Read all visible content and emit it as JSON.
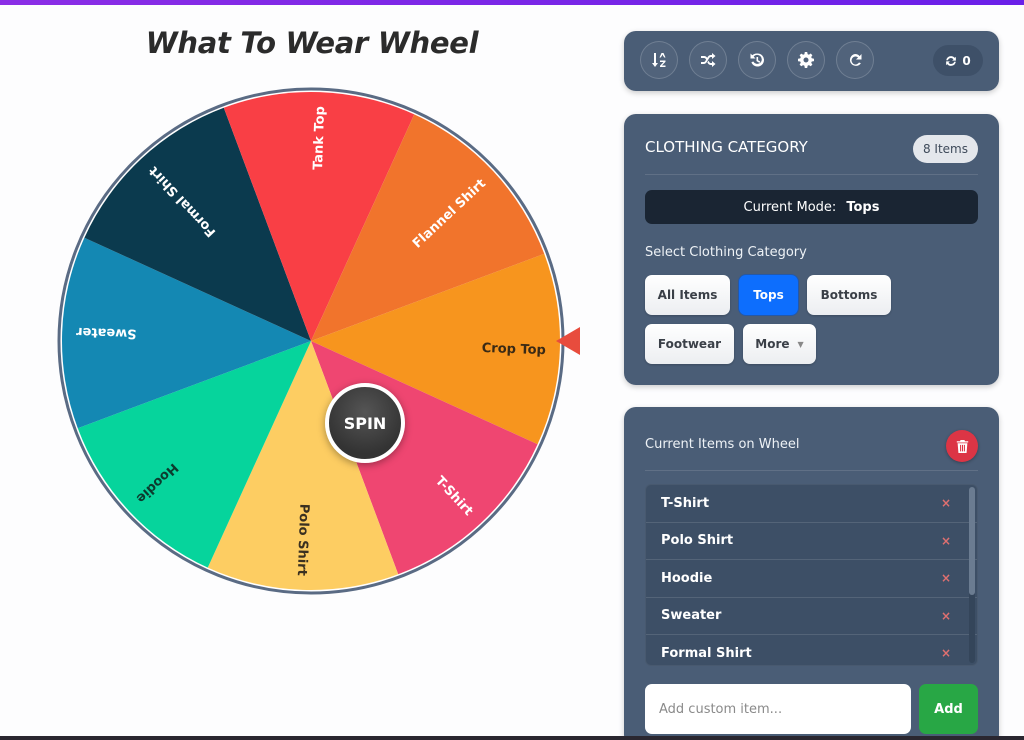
{
  "title": "What To Wear Wheel",
  "wheel": {
    "spin_label": "SPIN",
    "border_color": "#5a6b84",
    "pointer_color": "#e84c3d",
    "selected": "Crop Top",
    "segments": [
      {
        "label": "Crop Top",
        "color": "#f7951e",
        "text_color": "#3a2a15"
      },
      {
        "label": "T-Shirt",
        "color": "#ef4671",
        "text_color": "#ffffff"
      },
      {
        "label": "Polo Shirt",
        "color": "#fdcd62",
        "text_color": "#3a3020"
      },
      {
        "label": "Hoodie",
        "color": "#06d49c",
        "text_color": "#0c3b2e"
      },
      {
        "label": "Sweater",
        "color": "#1488b3",
        "text_color": "#ffffff"
      },
      {
        "label": "Formal Shirt",
        "color": "#0b3a4e",
        "text_color": "#ffffff"
      },
      {
        "label": "Tank Top",
        "color": "#f93f45",
        "text_color": "#ffffff"
      },
      {
        "label": "Flannel Shirt",
        "color": "#f1742c",
        "text_color": "#ffffff"
      }
    ]
  },
  "toolbar": {
    "buttons": [
      {
        "name": "sort",
        "icon": "sort-alpha-icon"
      },
      {
        "name": "shuffle",
        "icon": "shuffle-icon"
      },
      {
        "name": "history",
        "icon": "history-icon"
      },
      {
        "name": "settings",
        "icon": "gear-icon"
      },
      {
        "name": "reset",
        "icon": "redo-icon"
      }
    ],
    "spin_count": "0"
  },
  "category_panel": {
    "title": "CLOTHING CATEGORY",
    "items_badge": "8 Items",
    "mode_label": "Current Mode:",
    "mode_value": "Tops",
    "select_label": "Select Clothing Category",
    "buttons": [
      {
        "label": "All Items",
        "active": false
      },
      {
        "label": "Tops",
        "active": true
      },
      {
        "label": "Bottoms",
        "active": false
      },
      {
        "label": "Footwear",
        "active": false
      },
      {
        "label": "More",
        "active": false,
        "dropdown": true
      }
    ]
  },
  "items_panel": {
    "title": "Current Items on Wheel",
    "items": [
      "T-Shirt",
      "Polo Shirt",
      "Hoodie",
      "Sweater",
      "Formal Shirt"
    ],
    "remove_glyph": "×",
    "input_placeholder": "Add custom item...",
    "input_value": "",
    "add_label": "Add"
  }
}
